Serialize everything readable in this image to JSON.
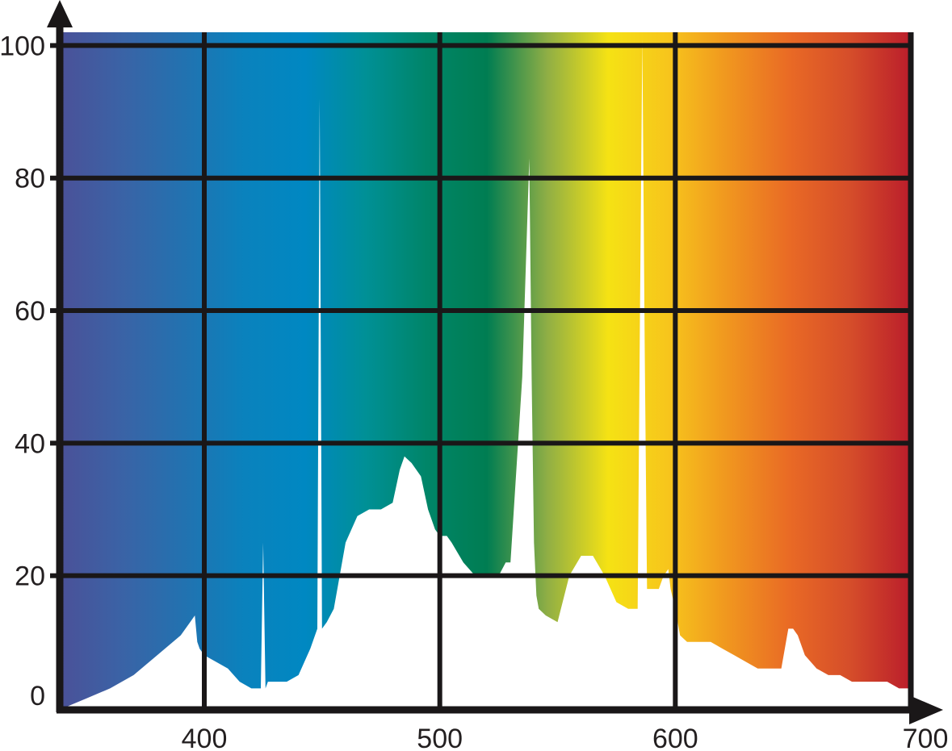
{
  "chart_data": {
    "type": "area",
    "title": "",
    "xlabel": "",
    "ylabel": "",
    "xlim": [
      340,
      700
    ],
    "ylim": [
      0,
      102
    ],
    "grid": true,
    "x_ticks": [
      400,
      500,
      600,
      700
    ],
    "x_tick_labels": [
      "400",
      "500",
      "600",
      "700"
    ],
    "y_ticks": [
      0,
      20,
      40,
      60,
      80,
      100
    ],
    "y_tick_labels": [
      "0",
      "20",
      "40",
      "60",
      "80",
      "100"
    ],
    "x_gridlines": [
      400,
      500,
      600
    ],
    "y_gridlines": [
      20,
      40,
      60,
      80,
      100
    ],
    "background": "visible-spectrum gradient (violet to red)",
    "colors": {
      "spectrum": [
        "#4a5299",
        "#3a63a6",
        "#2272b0",
        "#0a82bd",
        "#0088c2",
        "#009096",
        "#008568",
        "#007d52",
        "#8fae45",
        "#f5e214",
        "#f7c51c",
        "#f0951f",
        "#e96a25",
        "#d54d2a",
        "#ba1d2b"
      ],
      "grid": "#1a1718",
      "curve_fill": "#ffffff"
    },
    "series": [
      {
        "x": [
          340,
          350,
          360,
          370,
          380,
          390,
          394,
          396,
          397,
          398,
          400,
          405,
          410,
          415,
          420,
          424,
          425,
          426,
          427,
          428,
          430,
          435,
          440,
          445,
          448,
          449,
          450,
          452,
          455,
          460,
          465,
          470,
          475,
          480,
          483,
          485,
          488,
          490,
          492,
          495,
          498,
          500,
          503,
          505,
          510,
          515,
          520,
          525,
          528,
          530,
          535,
          538,
          539,
          540,
          541,
          542,
          545,
          550,
          555,
          560,
          565,
          570,
          575,
          580,
          584,
          585,
          586,
          587,
          588,
          590,
          593,
          595,
          597,
          598,
          600,
          602,
          605,
          610,
          615,
          620,
          625,
          630,
          635,
          640,
          645,
          648,
          650,
          652,
          655,
          660,
          665,
          670,
          675,
          680,
          685,
          690,
          695,
          700
        ],
        "y": [
          0,
          1.5,
          3,
          5,
          8,
          11,
          13,
          14,
          10,
          9,
          8,
          7,
          6,
          4,
          3,
          3,
          25,
          3,
          4,
          4,
          4,
          4,
          5,
          9,
          12,
          92,
          12,
          13,
          15,
          25,
          29,
          30,
          30,
          31,
          36,
          38,
          37,
          36,
          35,
          30,
          27,
          26,
          26,
          25,
          22,
          20,
          20,
          20,
          22,
          22,
          50,
          83,
          50,
          25,
          17,
          15,
          14,
          13,
          20,
          23,
          23,
          20,
          16,
          15,
          15,
          60,
          101,
          55,
          18,
          18,
          18,
          20,
          21,
          18,
          15,
          11,
          10,
          10,
          10,
          9,
          8,
          7,
          6,
          6,
          6,
          12,
          12,
          11,
          8,
          6,
          5,
          5,
          4,
          4,
          4,
          4,
          3,
          3
        ]
      }
    ]
  }
}
